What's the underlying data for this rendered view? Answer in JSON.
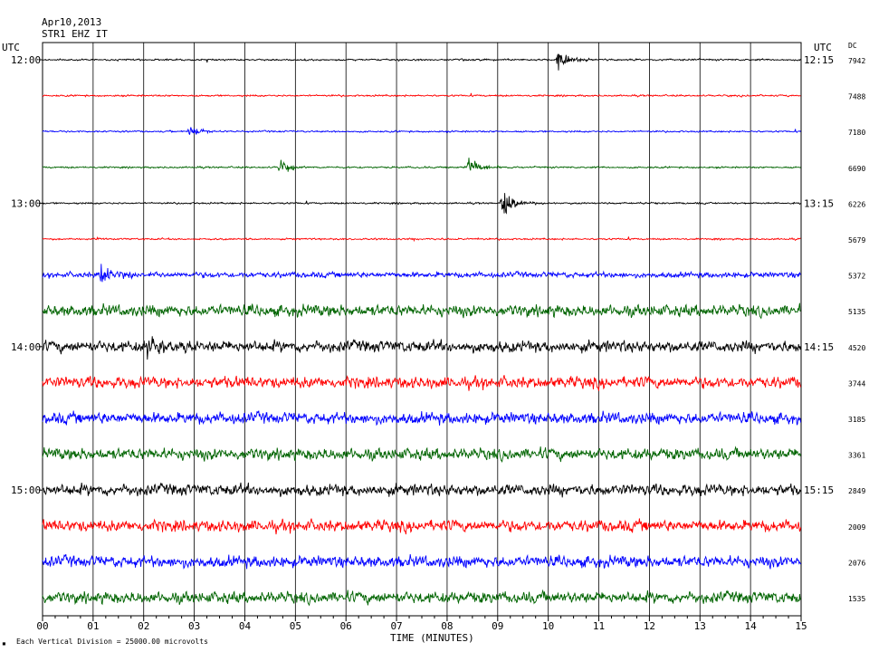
{
  "header": {
    "date": "Apr10,2013",
    "station": "STR1 EHZ IT"
  },
  "left_axis": {
    "title": "UTC"
  },
  "right_axis": {
    "title": "UTC",
    "dc_title": "DC"
  },
  "footer": {
    "note": "Each Vertical Division = 25000.00 microvolts",
    "corner_mark": "▪"
  },
  "chart_data": {
    "type": "line",
    "title": "Apr10,2013",
    "subtitle": "STR1 EHZ IT",
    "xlabel": "TIME (MINUTES)",
    "ylabel": "UTC",
    "xlim": [
      0,
      15
    ],
    "x_ticks": [
      "00",
      "01",
      "02",
      "03",
      "04",
      "05",
      "06",
      "07",
      "08",
      "09",
      "10",
      "11",
      "12",
      "13",
      "14",
      "15"
    ],
    "grid": "vertical lines at each minute",
    "colors": [
      "#000000",
      "#ff0000",
      "#0000ff",
      "#006400"
    ],
    "hour_labels_left": [
      "12:00",
      "13:00",
      "14:00",
      "15:00"
    ],
    "hour_labels_right": [
      "12:15",
      "13:15",
      "14:15",
      "15:15"
    ],
    "traces": [
      {
        "dc": "7942",
        "color": "#000000",
        "noise": "low"
      },
      {
        "dc": "7488",
        "color": "#ff0000",
        "noise": "low"
      },
      {
        "dc": "7180",
        "color": "#0000ff",
        "noise": "low"
      },
      {
        "dc": "6690",
        "color": "#006400",
        "noise": "low"
      },
      {
        "dc": "6226",
        "color": "#000000",
        "noise": "low"
      },
      {
        "dc": "5679",
        "color": "#ff0000",
        "noise": "low"
      },
      {
        "dc": "5372",
        "color": "#0000ff",
        "noise": "medium"
      },
      {
        "dc": "5135",
        "color": "#006400",
        "noise": "high"
      },
      {
        "dc": "4520",
        "color": "#000000",
        "noise": "high"
      },
      {
        "dc": "3744",
        "color": "#ff0000",
        "noise": "high"
      },
      {
        "dc": "3185",
        "color": "#0000ff",
        "noise": "high"
      },
      {
        "dc": "3361",
        "color": "#006400",
        "noise": "high"
      },
      {
        "dc": "2849",
        "color": "#000000",
        "noise": "high"
      },
      {
        "dc": "2009",
        "color": "#ff0000",
        "noise": "high"
      },
      {
        "dc": "2076",
        "color": "#0000ff",
        "noise": "high"
      },
      {
        "dc": "1535",
        "color": "#006400",
        "noise": "high"
      }
    ],
    "events": [
      {
        "trace": 0,
        "minute": 10.2,
        "amp": "large"
      },
      {
        "trace": 2,
        "minute": 2.9,
        "amp": "medium"
      },
      {
        "trace": 3,
        "minute": 4.7,
        "amp": "medium"
      },
      {
        "trace": 3,
        "minute": 8.4,
        "amp": "large"
      },
      {
        "trace": 4,
        "minute": 9.1,
        "amp": "large"
      },
      {
        "trace": 6,
        "minute": 1.15,
        "amp": "large"
      },
      {
        "trace": 8,
        "minute": 2.05,
        "amp": "large"
      }
    ]
  }
}
